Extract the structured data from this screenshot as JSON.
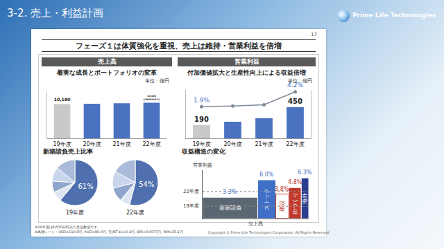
{
  "header": "3-2. 売上・利益計画",
  "logo": "Prime Life Technologies",
  "page_number": "17",
  "title": "フェーズ１は体質強化を重視、売上は維持・営業利益を倍増",
  "notes": [
    "※19年度は4月30日時点の見込数値です。",
    "※為替レート：USD=110.0円, AUD=80.0円, 元(NT＄)=3.4円, IDR=0.0077円, RM=25.1円"
  ],
  "copyright": "Copyright © Prime Life Technologies Corporation. All Rights Reserved.",
  "chart_data": [
    {
      "type": "bar",
      "title": "売上高",
      "subtitle": "着実な成長とポートフォリオの変革",
      "unit": "単位：億円",
      "categories": [
        "19年度",
        "20年度",
        "21年度",
        "22年度"
      ],
      "values": [
        10180,
        10300,
        10450,
        10600
      ],
      "value_labels": [
        "10,180",
        null,
        null,
        "10,600\n(CAGR101%)"
      ],
      "colors": [
        "#c9c9c9",
        "#4a72c0",
        "#4a72c0",
        "#4a72c0"
      ],
      "ylim": [
        0,
        14000
      ],
      "yticks": [],
      "data_labels": true,
      "tick_labels": "x"
    },
    {
      "type": "bar",
      "title": "営業利益",
      "subtitle": "付加価値拡大と生産性向上による収益倍増",
      "unit": "単位：億円",
      "categories": [
        "19年度",
        "20年度",
        "21年度",
        "22年度"
      ],
      "series": [
        {
          "type": "bar",
          "values": [
            190,
            240,
            290,
            450
          ],
          "value_labels": [
            "190",
            null,
            null,
            "450"
          ],
          "colors": [
            "#c9c9c9",
            "#4a72c0",
            "#4a72c0",
            "#4a72c0"
          ]
        },
        {
          "type": "line",
          "axis": "y2",
          "values": [
            1.9,
            2.0,
            2.2,
            4.2
          ],
          "value_labels": [
            "1.9%",
            null,
            null,
            "4.2%"
          ],
          "color": "#7f8a99",
          "marker": "circle",
          "line_style": "solid"
        }
      ],
      "ylim": [
        0,
        700
      ],
      "yticks": [],
      "y2lim": [
        -3,
        4.5
      ],
      "y2ticks": [],
      "data_labels": true,
      "tick_labels": "x"
    },
    {
      "type": "pie",
      "title": "新築請負売上比率",
      "series": [
        {
          "label": "19年度",
          "values": [
            61,
            14,
            10,
            8,
            7
          ],
          "value_labels": [
            "61%",
            null,
            null,
            null,
            null
          ],
          "colors": [
            "#4f6fae",
            "#a9bbd9",
            "#c9d5ea",
            "#8fa5cc",
            "#dde5f2"
          ]
        },
        {
          "label": "22年度",
          "values": [
            54,
            17,
            12,
            10,
            7
          ],
          "value_labels": [
            "54%",
            null,
            null,
            null,
            null
          ],
          "colors": [
            "#4f6fae",
            "#a9bbd9",
            "#c9d5ea",
            "#8fa5cc",
            "#dde5f2"
          ]
        }
      ],
      "data_labels": true
    },
    {
      "type": "bar",
      "title": "収益構造の変化",
      "ylabel": "営業利益",
      "xlabel": "売上高",
      "categories": [
        "新築請負",
        "ストック",
        "建設",
        "街づくり",
        "海外"
      ],
      "values": [
        3.3,
        6.0,
        3.8,
        4.8,
        6.3
      ],
      "value_labels": [
        "3.3%",
        "6.0%",
        "3.8%",
        "4.8%",
        "6.3%"
      ],
      "revenue_share": [
        52,
        17,
        12,
        12,
        7
      ],
      "colors": [
        "#5b6673",
        "#3f6fc6",
        "#ffffff",
        "#c0392b",
        "#2c3f8f"
      ],
      "reference_lines": [
        {
          "label": "22年度",
          "value": 4.2
        },
        {
          "label": "19年度",
          "value": 1.9
        }
      ],
      "xlim": [
        0,
        100
      ],
      "ylim": [
        0,
        7.5
      ],
      "xticks": [],
      "yticks": [],
      "data_labels": true,
      "tick_labels": false
    }
  ]
}
